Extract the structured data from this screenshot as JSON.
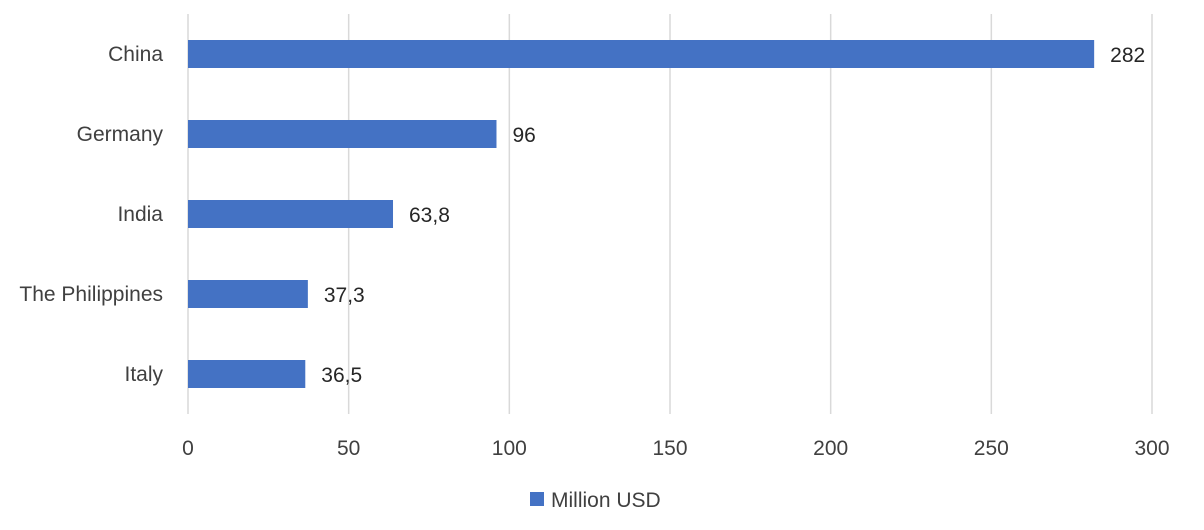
{
  "chart_data": {
    "type": "bar",
    "orientation": "horizontal",
    "categories": [
      "China",
      "Germany",
      "India",
      "The Philippines",
      "Italy"
    ],
    "series": [
      {
        "name": "Million USD",
        "values": [
          282,
          96,
          63.8,
          37.3,
          36.5
        ],
        "value_labels": [
          "282",
          "96",
          "63,8",
          "37,3",
          "36,5"
        ],
        "color": "#4472c4"
      }
    ],
    "xlim": [
      0,
      300
    ],
    "xticks": [
      0,
      50,
      100,
      150,
      200,
      250,
      300
    ],
    "xtick_labels": [
      "0",
      "50",
      "100",
      "150",
      "200",
      "250",
      "300"
    ],
    "grid": "vertical",
    "legend_position": "bottom",
    "title": "",
    "xlabel": "",
    "ylabel": ""
  }
}
